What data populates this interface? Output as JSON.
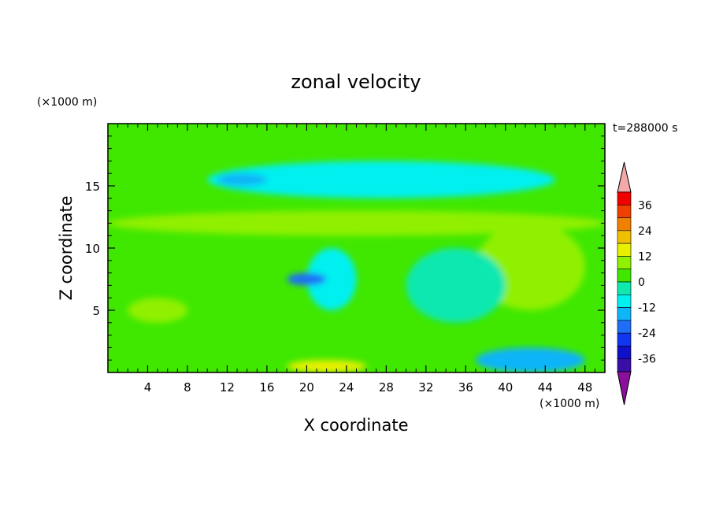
{
  "chart_data": {
    "type": "heatmap",
    "title": "zonal velocity",
    "xlabel": "X coordinate",
    "ylabel": "Z coordinate",
    "x_unit": "(×1000 m)",
    "y_unit": "(×1000 m)",
    "time_label": "t=288000 s",
    "xlim": [
      0,
      50
    ],
    "ylim": [
      0,
      20
    ],
    "x_ticks": [
      4,
      8,
      12,
      16,
      20,
      24,
      28,
      32,
      36,
      40,
      44,
      48
    ],
    "y_ticks": [
      5,
      10,
      15
    ],
    "colorbar": {
      "levels": [
        -42,
        -36,
        -30,
        -24,
        -18,
        -12,
        -6,
        0,
        6,
        12,
        18,
        24,
        30,
        36,
        42
      ],
      "tick_labels": [
        "36",
        "24",
        "12",
        "0",
        "-12",
        "-24",
        "-36"
      ],
      "tick_values": [
        36,
        24,
        12,
        0,
        -12,
        -24,
        -36
      ],
      "colors": [
        "#8a0f9c",
        "#3a0fa8",
        "#1010c8",
        "#1036f0",
        "#1f6ef8",
        "#10b4f8",
        "#00f0f0",
        "#10e8b0",
        "#40e800",
        "#90f000",
        "#e8f000",
        "#f0c000",
        "#f08000",
        "#f04000",
        "#f00000",
        "#f4a8a8"
      ],
      "extend": "both"
    },
    "approx_regions": [
      {
        "x": [
          0,
          50
        ],
        "z": [
          0,
          20
        ],
        "value": 0
      },
      {
        "x": [
          10,
          45
        ],
        "z": [
          14,
          17
        ],
        "value": -8
      },
      {
        "x": [
          11,
          16
        ],
        "z": [
          15,
          16
        ],
        "value": -18
      },
      {
        "x": [
          0,
          50
        ],
        "z": [
          11,
          13
        ],
        "value": 8
      },
      {
        "x": [
          37,
          48
        ],
        "z": [
          5,
          12
        ],
        "value": 10
      },
      {
        "x": [
          20,
          25
        ],
        "z": [
          5,
          10
        ],
        "value": -10
      },
      {
        "x": [
          18,
          22
        ],
        "z": [
          7,
          8
        ],
        "value": -20
      },
      {
        "x": [
          2,
          8
        ],
        "z": [
          4,
          6
        ],
        "value": 10
      },
      {
        "x": [
          30,
          40
        ],
        "z": [
          4,
          10
        ],
        "value": -4
      },
      {
        "x": [
          37,
          48
        ],
        "z": [
          0,
          2
        ],
        "value": -16
      },
      {
        "x": [
          18,
          26
        ],
        "z": [
          0,
          1
        ],
        "value": 12
      }
    ]
  }
}
